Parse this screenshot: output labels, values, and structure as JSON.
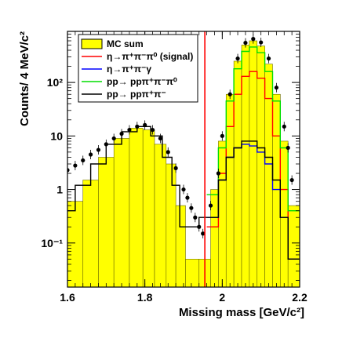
{
  "chart_data": {
    "type": "line",
    "xlabel": "Missing mass [GeV/c²]",
    "ylabel": "Counts/ 4 MeV/c²",
    "xlim": [
      1.6,
      2.2
    ],
    "ylim": [
      0.015,
      900
    ],
    "yscale": "log",
    "x_ticks": [
      "1.6",
      "1.8",
      "2",
      "2.2"
    ],
    "y_ticks": [
      "10⁻¹",
      "1",
      "10",
      "10²"
    ],
    "y_tick_values": [
      0.1,
      1,
      10,
      100
    ],
    "grid": false,
    "legend_position": "top-left",
    "vertical_line": {
      "x": 1.955,
      "color": "#ff0000"
    },
    "series": [
      {
        "name": "MC sum",
        "color": "#ffff00",
        "style": "filled-histogram",
        "x": [
          1.62,
          1.66,
          1.7,
          1.74,
          1.78,
          1.81,
          1.84,
          1.87,
          1.89,
          1.92,
          1.96,
          1.98,
          2.0,
          2.02,
          2.04,
          2.06,
          2.08,
          2.1,
          2.12,
          2.14,
          2.16,
          2.18
        ],
        "values": [
          0.6,
          1.5,
          4,
          9,
          14,
          13,
          7,
          3,
          0.5,
          0.05,
          0.05,
          1,
          8,
          60,
          250,
          500,
          600,
          480,
          220,
          60,
          8,
          0.5
        ]
      },
      {
        "name": "η→π⁺π⁻π⁰ (signal)",
        "color": "#ff0000",
        "style": "line",
        "x": [
          1.98,
          2.0,
          2.02,
          2.04,
          2.06,
          2.08,
          2.1,
          2.12,
          2.14,
          2.16,
          2.18
        ],
        "values": [
          0.2,
          2,
          15,
          60,
          130,
          160,
          120,
          50,
          10,
          1,
          0.05
        ]
      },
      {
        "name": "η→π⁺π⁻γ",
        "color": "#0000ff",
        "style": "line",
        "x": [
          1.98,
          2.0,
          2.02,
          2.04,
          2.06,
          2.08,
          2.1,
          2.12,
          2.14,
          2.16,
          2.18
        ],
        "values": [
          0.3,
          1.5,
          4,
          6,
          7,
          6.5,
          5,
          3,
          1,
          0.3,
          0.05
        ]
      },
      {
        "name": "pp→ ppπ⁺π⁻π⁰",
        "color": "#00dd00",
        "style": "line",
        "x": [
          1.98,
          2.0,
          2.02,
          2.04,
          2.06,
          2.08,
          2.1,
          2.12,
          2.14,
          2.16,
          2.18
        ],
        "values": [
          0.8,
          6,
          45,
          180,
          380,
          460,
          360,
          160,
          45,
          6,
          0.4
        ]
      },
      {
        "name": "pp→ ppπ⁺π⁻",
        "color": "#000000",
        "style": "line",
        "x": [
          1.6,
          1.64,
          1.68,
          1.72,
          1.76,
          1.8,
          1.83,
          1.86,
          1.88,
          1.9,
          1.98,
          2.0,
          2.02,
          2.04,
          2.06,
          2.08,
          2.1,
          2.12,
          2.14,
          2.16,
          2.18
        ],
        "values": [
          0.4,
          1.2,
          3,
          7,
          12,
          15,
          10,
          4,
          1.2,
          0.2,
          0.3,
          1.5,
          4,
          6,
          8,
          8,
          6,
          4,
          1.5,
          0.3,
          0.05
        ]
      },
      {
        "name": "Data",
        "color": "#000000",
        "style": "points",
        "x": [
          1.6,
          1.62,
          1.64,
          1.66,
          1.68,
          1.7,
          1.72,
          1.74,
          1.76,
          1.78,
          1.8,
          1.82,
          1.84,
          1.86,
          1.88,
          1.9,
          1.91,
          1.92,
          1.93,
          1.94,
          1.95,
          1.97,
          1.99,
          2.0,
          2.02,
          2.04,
          2.06,
          2.08,
          2.1,
          2.12,
          2.14,
          2.16,
          2.17,
          2.18
        ],
        "values": [
          2.3,
          2.8,
          3.5,
          4.5,
          5.5,
          7,
          9,
          11,
          13,
          15,
          16,
          13,
          9,
          5,
          2.5,
          1,
          0.7,
          0.45,
          0.3,
          0.2,
          0.15,
          0.5,
          2,
          10,
          60,
          280,
          550,
          650,
          560,
          280,
          80,
          15,
          6,
          1.5
        ]
      }
    ]
  }
}
